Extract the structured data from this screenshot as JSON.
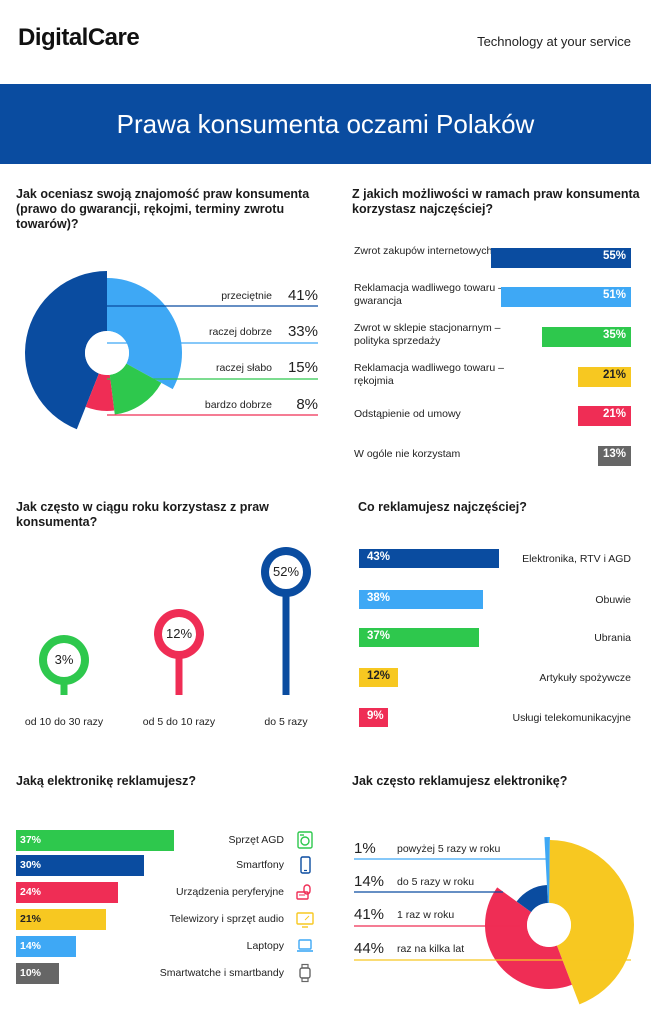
{
  "header": {
    "logo": "DigitalCare",
    "tagline": "Technology at your service",
    "title": "Prawa konsumenta oczami Polaków"
  },
  "colors": {
    "dark_blue": "#0a4ca0",
    "light_blue": "#3ea8f5",
    "green": "#2ec84d",
    "yellow": "#f7c821",
    "red": "#ef2d55",
    "gray": "#666666"
  },
  "chart_data": [
    {
      "type": "pie",
      "title": "Jak oceniasz swoją znajomość praw konsumenta (prawo do gwarancji, rękojmi, terminy zwrotu towarów)?",
      "categories": [
        "przeciętnie",
        "raczej dobrze",
        "raczej słabo",
        "bardzo dobrze"
      ],
      "values": [
        41,
        33,
        15,
        8
      ],
      "labels": [
        "41%",
        "33%",
        "15%",
        "8%"
      ],
      "colors": [
        "#0a4ca0",
        "#3ea8f5",
        "#2ec84d",
        "#ef2d55"
      ]
    },
    {
      "type": "bar",
      "title": "Z jakich możliwości w ramach praw konsumenta korzystasz najczęściej?",
      "categories": [
        "Zwrot zakupów internetowych",
        "Reklamacja wadliwego towaru – gwarancja",
        "Zwrot w sklepie stacjonarnym – polityka sprzedaży",
        "Reklamacja wadliwego towaru – rękojmia",
        "Odstąpienie od umowy",
        "W ogóle nie korzystam"
      ],
      "values": [
        55,
        51,
        35,
        21,
        21,
        13
      ],
      "labels": [
        "55%",
        "51%",
        "35%",
        "21%",
        "21%",
        "13%"
      ],
      "colors": [
        "#0a4ca0",
        "#3ea8f5",
        "#2ec84d",
        "#f7c821",
        "#ef2d55",
        "#666666"
      ]
    },
    {
      "type": "bar",
      "title": "Jak często w ciągu roku korzystasz z praw konsumenta?",
      "categories": [
        "od 10 do 30 razy",
        "od 5 do 10 razy",
        "do 5 razy"
      ],
      "values": [
        3,
        12,
        52
      ],
      "labels": [
        "3%",
        "12%",
        "52%"
      ],
      "colors": [
        "#2ec84d",
        "#ef2d55",
        "#0a4ca0"
      ]
    },
    {
      "type": "bar",
      "title": "Co reklamujesz najczęściej?",
      "categories": [
        "Elektronika, RTV i AGD",
        "Obuwie",
        "Ubrania",
        "Artykuły spożywcze",
        "Usługi telekomunikacyjne"
      ],
      "values": [
        43,
        38,
        37,
        12,
        9
      ],
      "labels": [
        "43%",
        "38%",
        "37%",
        "12%",
        "9%"
      ],
      "colors": [
        "#0a4ca0",
        "#3ea8f5",
        "#2ec84d",
        "#f7c821",
        "#ef2d55"
      ]
    },
    {
      "type": "bar",
      "title": "Jaką elektronikę reklamujesz?",
      "categories": [
        "Sprzęt AGD",
        "Smartfony",
        "Urządzenia peryferyjne",
        "Telewizory i sprzęt audio",
        "Laptopy",
        "Smartwatche i smartbandy"
      ],
      "values": [
        37,
        30,
        24,
        21,
        14,
        10
      ],
      "labels": [
        "37%",
        "30%",
        "24%",
        "21%",
        "14%",
        "10%"
      ],
      "colors": [
        "#2ec84d",
        "#0a4ca0",
        "#ef2d55",
        "#f7c821",
        "#3ea8f5",
        "#666666"
      ],
      "icons": [
        "appliance-icon",
        "smartphone-icon",
        "peripheral-icon",
        "tv-icon",
        "laptop-icon",
        "smartwatch-icon"
      ]
    },
    {
      "type": "pie",
      "title": "Jak często reklamujesz elektronikę?",
      "categories": [
        "powyżej 5 razy w roku",
        "do 5 razy w roku",
        "1 raz w roku",
        "raz na kilka lat"
      ],
      "values": [
        1,
        14,
        41,
        44
      ],
      "labels": [
        "1%",
        "14%",
        "41%",
        "44%"
      ],
      "colors": [
        "#3ea8f5",
        "#0a4ca0",
        "#ef2d55",
        "#f7c821"
      ]
    }
  ]
}
